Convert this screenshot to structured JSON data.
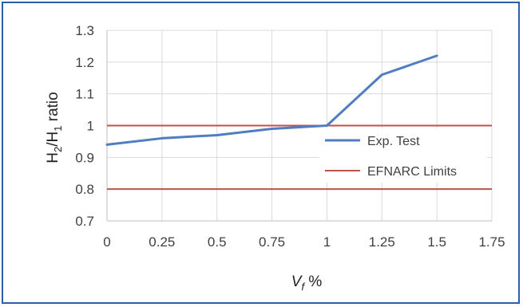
{
  "chart_data": {
    "type": "line",
    "xlabel": "V_f %",
    "ylabel": "H2/H1 ratio",
    "x_ticks": [
      "0",
      "0.25",
      "0.5",
      "0.75",
      "1",
      "1.25",
      "1.5",
      "1.75"
    ],
    "y_ticks": [
      "0.7",
      "0.8",
      "0.9",
      "1",
      "1.1",
      "1.2",
      "1.3"
    ],
    "xlim": [
      0,
      1.75
    ],
    "ylim": [
      0.7,
      1.3
    ],
    "grid": true,
    "legend_position": "right",
    "series": [
      {
        "name": "Exp. Test",
        "color": "#4f7ec0",
        "x": [
          0,
          0.25,
          0.5,
          0.75,
          1,
          1.25,
          1.5
        ],
        "y": [
          0.94,
          0.96,
          0.97,
          0.99,
          1.0,
          1.16,
          1.22
        ]
      },
      {
        "name": "EFNARC Limits",
        "color": "#c0504d",
        "segments": [
          {
            "x": [
              0,
              1.75
            ],
            "y": [
              1.0,
              1.0
            ]
          },
          {
            "x": [
              0,
              1.75
            ],
            "y": [
              0.8,
              0.8
            ]
          }
        ]
      }
    ]
  }
}
